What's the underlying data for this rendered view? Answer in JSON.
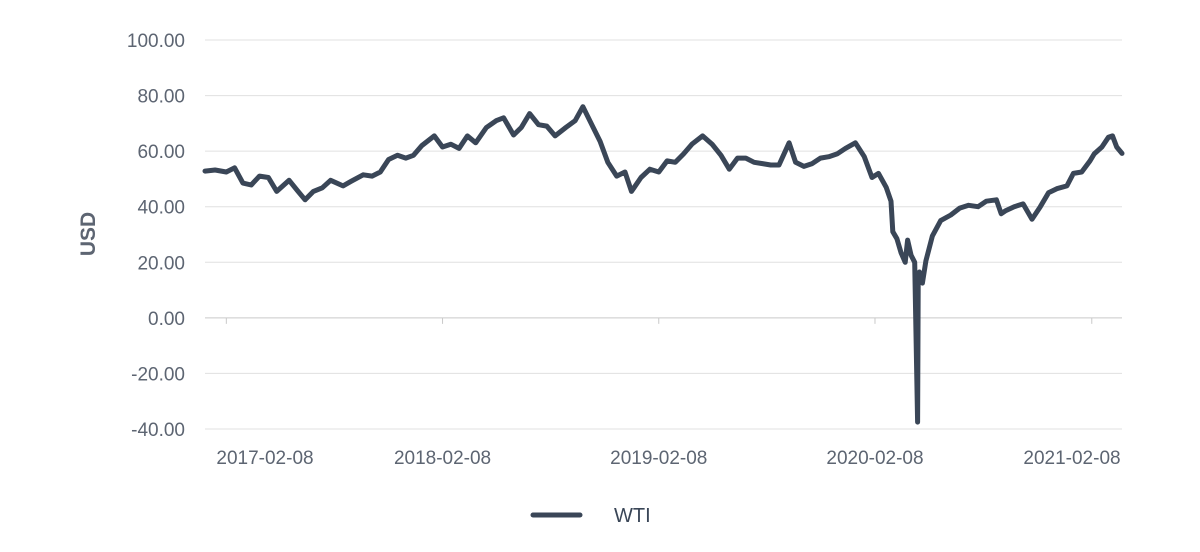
{
  "chart_data": {
    "type": "line",
    "ylabel": "USD",
    "xlabel": "",
    "ylim": [
      -40,
      100
    ],
    "y_ticks": [
      "100.00",
      "80.00",
      "60.00",
      "40.00",
      "20.00",
      "0.00",
      "-20.00",
      "-40.00"
    ],
    "y_tick_values": [
      100,
      80,
      60,
      40,
      20,
      0,
      -20,
      -40
    ],
    "x_range": [
      "2017-01-03",
      "2021-03-31"
    ],
    "x_ticks": [
      "2017-02-08",
      "2018-02-08",
      "2019-02-08",
      "2020-02-08",
      "2021-02-08"
    ],
    "grid": true,
    "legend_position": "bottom-center",
    "series": [
      {
        "name": "WTI",
        "color": "#3a4657",
        "x": [
          "2017-01-03",
          "2017-01-20",
          "2017-02-08",
          "2017-02-22",
          "2017-03-08",
          "2017-03-22",
          "2017-04-05",
          "2017-04-20",
          "2017-05-04",
          "2017-05-25",
          "2017-06-08",
          "2017-06-21",
          "2017-07-05",
          "2017-07-20",
          "2017-08-03",
          "2017-08-24",
          "2017-09-07",
          "2017-09-27",
          "2017-10-12",
          "2017-10-26",
          "2017-11-09",
          "2017-11-24",
          "2017-12-08",
          "2017-12-21",
          "2018-01-04",
          "2018-01-25",
          "2018-02-08",
          "2018-02-22",
          "2018-03-08",
          "2018-03-22",
          "2018-04-05",
          "2018-04-23",
          "2018-05-10",
          "2018-05-22",
          "2018-06-08",
          "2018-06-21",
          "2018-07-05",
          "2018-07-20",
          "2018-08-03",
          "2018-08-17",
          "2018-09-04",
          "2018-09-20",
          "2018-10-03",
          "2018-10-18",
          "2018-11-01",
          "2018-11-14",
          "2018-11-29",
          "2018-12-13",
          "2018-12-24",
          "2019-01-09",
          "2019-01-24",
          "2019-02-08",
          "2019-02-22",
          "2019-03-08",
          "2019-03-22",
          "2019-04-05",
          "2019-04-23",
          "2019-05-09",
          "2019-05-24",
          "2019-06-07",
          "2019-06-21",
          "2019-07-05",
          "2019-07-19",
          "2019-08-02",
          "2019-08-16",
          "2019-08-30",
          "2019-09-16",
          "2019-09-27",
          "2019-10-11",
          "2019-10-25",
          "2019-11-08",
          "2019-11-22",
          "2019-12-06",
          "2019-12-20",
          "2020-01-06",
          "2020-01-21",
          "2020-02-03",
          "2020-02-14",
          "2020-02-27",
          "2020-03-06",
          "2020-03-09",
          "2020-03-16",
          "2020-03-23",
          "2020-03-30",
          "2020-04-03",
          "2020-04-09",
          "2020-04-15",
          "2020-04-20",
          "2020-04-21",
          "2020-04-23",
          "2020-04-28",
          "2020-05-04",
          "2020-05-15",
          "2020-05-29",
          "2020-06-15",
          "2020-06-30",
          "2020-07-15",
          "2020-07-31",
          "2020-08-14",
          "2020-08-31",
          "2020-09-08",
          "2020-09-15",
          "2020-09-30",
          "2020-10-15",
          "2020-10-30",
          "2020-11-13",
          "2020-11-27",
          "2020-12-11",
          "2020-12-28",
          "2021-01-08",
          "2021-01-22",
          "2021-02-05",
          "2021-02-12",
          "2021-02-25",
          "2021-03-08",
          "2021-03-15",
          "2021-03-22",
          "2021-03-31"
        ],
        "values": [
          52.8,
          53.2,
          52.5,
          54.0,
          48.5,
          47.8,
          51.0,
          50.5,
          45.5,
          49.5,
          45.8,
          42.5,
          45.5,
          46.8,
          49.5,
          47.5,
          49.2,
          51.5,
          51.0,
          52.5,
          57.0,
          58.5,
          57.5,
          58.5,
          62.0,
          65.5,
          61.5,
          62.5,
          61.0,
          65.5,
          63.0,
          68.5,
          71.0,
          72.0,
          65.8,
          68.5,
          73.5,
          69.5,
          69.0,
          65.5,
          68.5,
          71.0,
          76.0,
          69.5,
          63.5,
          56.0,
          51.0,
          52.5,
          45.5,
          50.5,
          53.5,
          52.5,
          56.5,
          56.0,
          59.0,
          62.5,
          65.5,
          62.5,
          58.5,
          53.5,
          57.5,
          57.5,
          56.0,
          55.5,
          55.0,
          55.0,
          63.0,
          56.0,
          54.5,
          55.5,
          57.5,
          58.0,
          59.0,
          61.0,
          63.0,
          58.0,
          50.5,
          52.0,
          47.0,
          42.0,
          31.0,
          28.5,
          23.5,
          20.0,
          28.0,
          22.5,
          20.0,
          -37.5,
          12.0,
          16.5,
          12.5,
          20.5,
          29.5,
          35.0,
          37.0,
          39.5,
          40.5,
          40.0,
          42.0,
          42.5,
          37.5,
          38.5,
          40.0,
          41.0,
          35.5,
          40.0,
          45.0,
          46.5,
          47.5,
          52.0,
          52.5,
          56.5,
          59.0,
          61.5,
          65.0,
          65.5,
          61.5,
          59.2
        ]
      }
    ]
  }
}
